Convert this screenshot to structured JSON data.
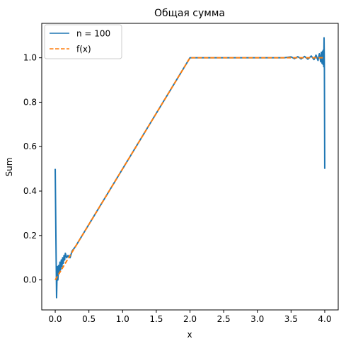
{
  "chart_data": {
    "type": "line",
    "title": "Общая сумма",
    "xlabel": "x",
    "ylabel": "Sum",
    "xlim": [
      -0.2,
      4.2
    ],
    "ylim": [
      -0.135,
      1.155
    ],
    "xticks": [
      0.0,
      0.5,
      1.0,
      1.5,
      2.0,
      2.5,
      3.0,
      3.5,
      4.0
    ],
    "xtick_labels": [
      "0.0",
      "0.5",
      "1.0",
      "1.5",
      "2.0",
      "2.5",
      "3.0",
      "3.5",
      "4.0"
    ],
    "yticks": [
      0.0,
      0.2,
      0.4,
      0.6,
      0.8,
      1.0
    ],
    "ytick_labels": [
      "0.0",
      "0.2",
      "0.4",
      "0.6",
      "0.8",
      "1.0"
    ],
    "grid": false,
    "legend_position": "upper-left",
    "series": [
      {
        "name": "n = 100",
        "color": "#1f77b4",
        "style": "solid",
        "points": [
          [
            0.0,
            0.5
          ],
          [
            0.01,
            0.2
          ],
          [
            0.02,
            -0.08
          ],
          [
            0.03,
            0.06
          ],
          [
            0.04,
            0.0
          ],
          [
            0.05,
            0.065
          ],
          [
            0.06,
            0.03
          ],
          [
            0.07,
            0.08
          ],
          [
            0.08,
            0.045
          ],
          [
            0.09,
            0.09
          ],
          [
            0.1,
            0.06
          ],
          [
            0.11,
            0.1
          ],
          [
            0.12,
            0.075
          ],
          [
            0.13,
            0.11
          ],
          [
            0.14,
            0.09
          ],
          [
            0.15,
            0.12
          ],
          [
            0.17,
            0.1
          ],
          [
            0.19,
            0.11
          ],
          [
            0.22,
            0.1
          ],
          [
            0.25,
            0.13
          ],
          [
            0.3,
            0.15
          ],
          [
            0.5,
            0.25
          ],
          [
            1.0,
            0.5
          ],
          [
            1.5,
            0.75
          ],
          [
            1.95,
            0.975
          ],
          [
            2.0,
            1.0
          ],
          [
            2.1,
            1.0
          ],
          [
            2.5,
            1.0
          ],
          [
            3.0,
            1.0
          ],
          [
            3.4,
            1.0
          ],
          [
            3.5,
            1.004
          ],
          [
            3.55,
            0.996
          ],
          [
            3.6,
            1.005
          ],
          [
            3.65,
            0.995
          ],
          [
            3.7,
            1.006
          ],
          [
            3.75,
            0.994
          ],
          [
            3.8,
            1.008
          ],
          [
            3.84,
            0.992
          ],
          [
            3.87,
            1.012
          ],
          [
            3.9,
            0.988
          ],
          [
            3.92,
            1.018
          ],
          [
            3.94,
            0.982
          ],
          [
            3.95,
            1.025
          ],
          [
            3.96,
            0.975
          ],
          [
            3.97,
            1.03
          ],
          [
            3.975,
            0.97
          ],
          [
            3.98,
            1.035
          ],
          [
            3.985,
            0.96
          ],
          [
            3.99,
            1.09
          ],
          [
            3.995,
            0.95
          ],
          [
            4.0,
            0.5
          ]
        ]
      },
      {
        "name": "f(x)",
        "color": "#ff7f0e",
        "style": "dashed",
        "points": [
          [
            0.0,
            0.0
          ],
          [
            2.0,
            1.0
          ],
          [
            4.0,
            1.0
          ]
        ]
      }
    ]
  }
}
